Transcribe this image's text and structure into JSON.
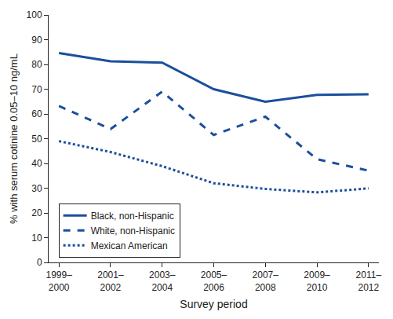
{
  "chart_data": {
    "type": "line",
    "x_label": "Survey period",
    "y_label": "% with serum cotinine 0.05–10 ng/mL",
    "categories": [
      "1999–2000",
      "2001–2002",
      "2003–2004",
      "2005–2006",
      "2007–2008",
      "2009–2010",
      "2011–2012"
    ],
    "series": [
      {
        "name": "Black, non-Hispanic",
        "color": "#1b4f9c",
        "line_style": "solid",
        "values": [
          84.6,
          81.3,
          80.7,
          70.0,
          64.9,
          67.7,
          67.9
        ]
      },
      {
        "name": "White, non-Hispanic",
        "color": "#1b4f9c",
        "line_style": "dashed",
        "values": [
          63.2,
          53.9,
          69.0,
          51.5,
          58.9,
          41.7,
          37.1
        ]
      },
      {
        "name": "Mexican American",
        "color": "#1b4f9c",
        "line_style": "dotted",
        "values": [
          49.0,
          44.6,
          38.9,
          32.0,
          29.7,
          28.3,
          29.9
        ]
      }
    ],
    "ylim": [
      0,
      100
    ],
    "yticks": [
      0,
      10,
      20,
      30,
      40,
      50,
      60,
      70,
      80,
      90,
      100
    ],
    "grid": false,
    "legend": "lower left"
  }
}
